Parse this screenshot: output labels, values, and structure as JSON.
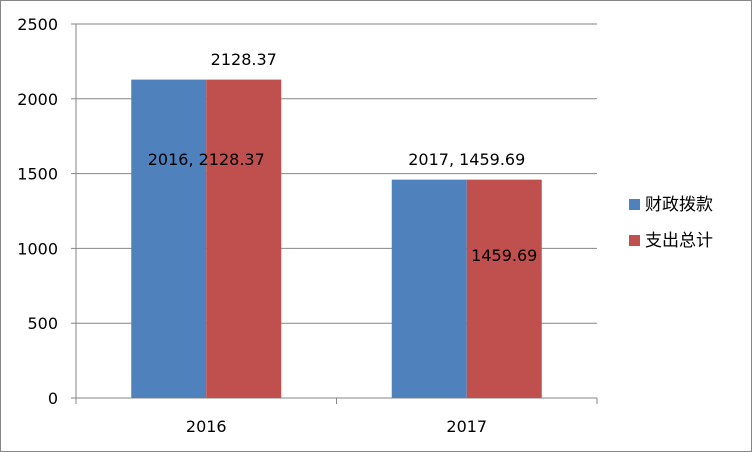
{
  "chart_data": {
    "type": "bar",
    "categories": [
      "2016",
      "2017"
    ],
    "series": [
      {
        "name": "财政拨款",
        "values": [
          2128.37,
          1459.69
        ],
        "color": "#4F81BD"
      },
      {
        "name": "支出总计",
        "values": [
          2128.37,
          1459.69
        ],
        "color": "#C0504D"
      }
    ],
    "ylim": [
      0,
      2500
    ],
    "y_ticks": [
      "0",
      "500",
      "1000",
      "1500",
      "2000",
      "2500"
    ],
    "grid": true,
    "legend_position": "right",
    "data_labels": [
      {
        "series": 0,
        "category": 0,
        "text": "2016, 2128.37"
      },
      {
        "series": 1,
        "category": 0,
        "text": "2128.37"
      },
      {
        "series": 0,
        "category": 1,
        "text": "2017, 1459.69"
      },
      {
        "series": 1,
        "category": 1,
        "text": "1459.69"
      }
    ],
    "title": "",
    "xlabel": "",
    "ylabel": ""
  }
}
